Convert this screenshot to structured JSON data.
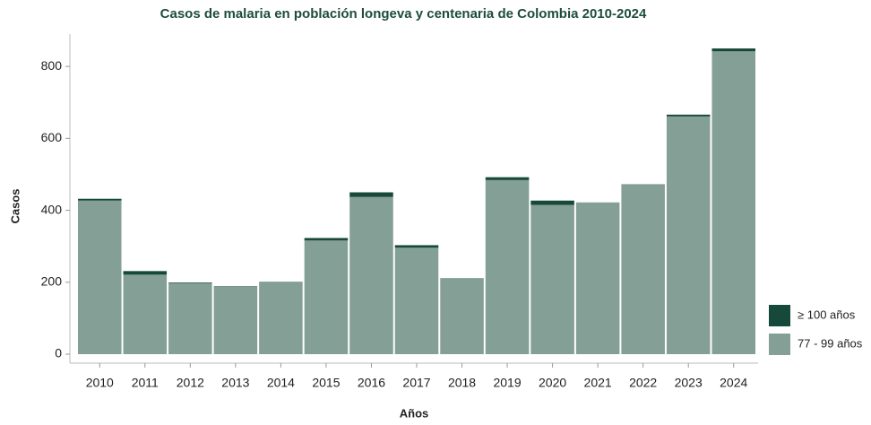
{
  "chart_data": {
    "type": "stacked_bar",
    "title": "Casos de malaria en población longeva y centenaria de Colombia 2010-2024",
    "x_label": "Años",
    "y_label": "Casos",
    "categories": [
      "2010",
      "2011",
      "2012",
      "2013",
      "2014",
      "2015",
      "2016",
      "2017",
      "2018",
      "2019",
      "2020",
      "2021",
      "2022",
      "2023",
      "2024"
    ],
    "series": [
      {
        "name": "77 - 99 años",
        "color": "#84a096",
        "values": [
          427,
          221,
          197,
          188,
          200,
          316,
          437,
          296,
          210,
          484,
          415,
          422,
          471,
          661,
          842
        ]
      },
      {
        "name": "≥ 100 años",
        "color": "#17493a",
        "values": [
          5,
          10,
          2,
          1,
          1,
          7,
          13,
          7,
          1,
          8,
          12,
          0,
          1,
          5,
          8
        ]
      }
    ],
    "ylim": [
      0,
      890
    ],
    "yticks": [
      0,
      200,
      400,
      600,
      800
    ]
  }
}
